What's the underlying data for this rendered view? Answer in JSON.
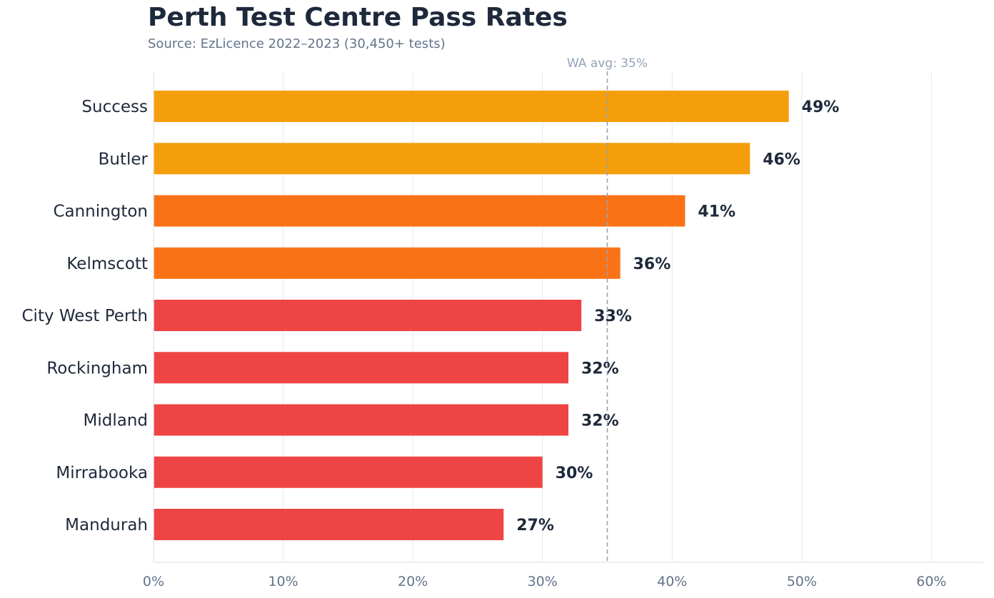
{
  "chart_data": {
    "type": "bar",
    "orientation": "horizontal",
    "title": "Perth Test Centre Pass Rates",
    "subtitle": "Source: EzLicence 2022–2023 (30,450+ tests)",
    "categories": [
      "Success",
      "Butler",
      "Cannington",
      "Kelmscott",
      "City West Perth",
      "Rockingham",
      "Midland",
      "Mirrabooka",
      "Mandurah"
    ],
    "values": [
      49,
      46,
      41,
      36,
      33,
      32,
      32,
      30,
      27
    ],
    "value_labels": [
      "49%",
      "46%",
      "41%",
      "36%",
      "33%",
      "32%",
      "32%",
      "30%",
      "27%"
    ],
    "bar_colors": [
      "#f59e0b",
      "#f59e0b",
      "#f97316",
      "#f97316",
      "#ef4444",
      "#ef4444",
      "#ef4444",
      "#ef4444",
      "#ef4444"
    ],
    "xlim": [
      0,
      64
    ],
    "xticks": [
      0,
      10,
      20,
      30,
      40,
      50,
      60
    ],
    "xtick_labels": [
      "0%",
      "10%",
      "20%",
      "30%",
      "40%",
      "50%",
      "60%"
    ],
    "grid": "vertical",
    "reference_line": {
      "value": 35,
      "label": "WA avg: 35%",
      "color": "#94a3b8",
      "style": "dashed"
    },
    "colors": {
      "text": "#1e293b",
      "muted": "#64748b",
      "grid": "#e5e9f0"
    }
  }
}
